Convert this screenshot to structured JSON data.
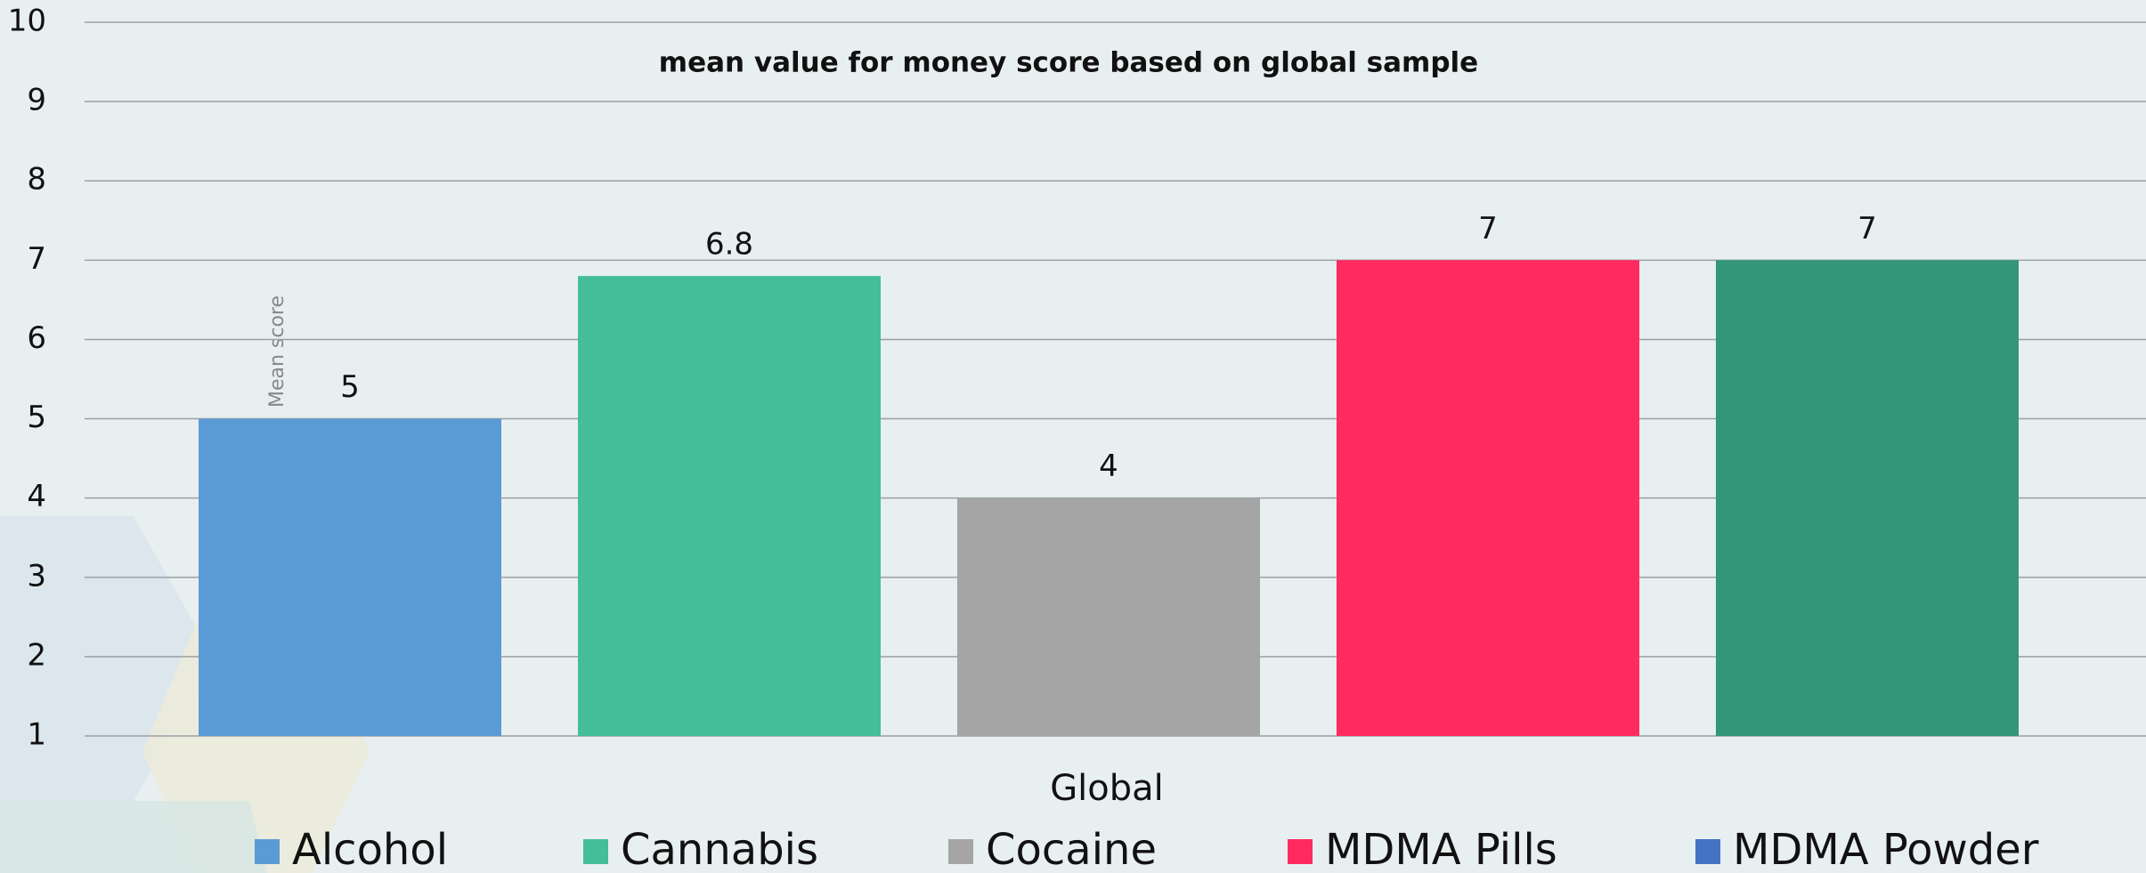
{
  "chart_data": {
    "type": "bar",
    "title": "mean value for money score based on global sample",
    "y_label": "Mean score",
    "x_label": "Global",
    "categories": [
      "Global"
    ],
    "series": [
      {
        "name": "Alcohol",
        "color": "#5b9bd5",
        "values": [
          5
        ]
      },
      {
        "name": "Cannabis",
        "color": "#43be96",
        "values": [
          6.8
        ]
      },
      {
        "name": "Cocaine",
        "color": "#a5a5a5",
        "values": [
          4
        ]
      },
      {
        "name": "MDMA Pills",
        "color": "#ff2a5f",
        "values": [
          7
        ]
      },
      {
        "name": "MDMA Powder",
        "color": "#339676",
        "legend_color": "#4472c4",
        "values": [
          7
        ]
      }
    ],
    "ylim": [
      1,
      10
    ],
    "yticks": [
      1,
      2,
      3,
      4,
      5,
      6,
      7,
      8,
      9,
      10
    ],
    "grid": true,
    "legend": "bottom"
  }
}
